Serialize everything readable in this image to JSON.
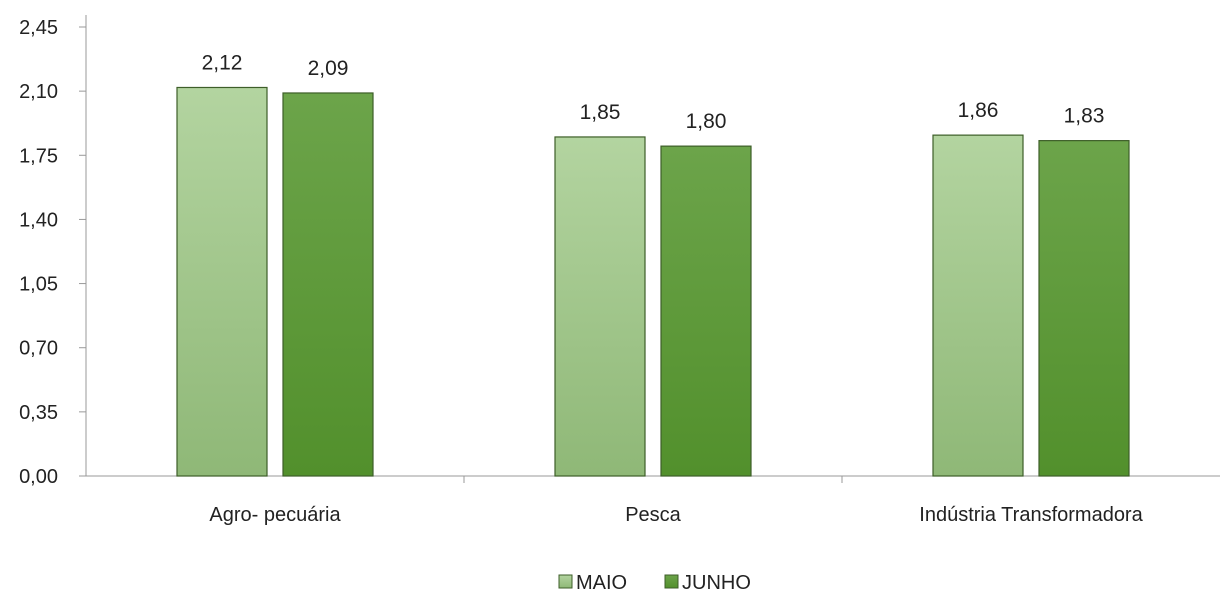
{
  "chart_data": {
    "type": "bar",
    "categories": [
      "Agro- pecuária",
      "Pesca",
      "Indústria Transformadora"
    ],
    "series": [
      {
        "name": "MAIO",
        "values": [
          2.12,
          1.85,
          1.86
        ],
        "value_labels": [
          "2,12",
          "1,85",
          "1,86"
        ],
        "color": "#a6c990"
      },
      {
        "name": "JUNHO",
        "values": [
          2.09,
          1.8,
          1.83
        ],
        "value_labels": [
          "2,09",
          "1,80",
          "1,83"
        ],
        "color": "#5e9a3a"
      }
    ],
    "ylim": [
      0,
      2.45
    ],
    "yticks": [
      0,
      0.35,
      0.7,
      1.05,
      1.4,
      1.75,
      2.1,
      2.45
    ],
    "ytick_labels": [
      "0,00",
      "0,35",
      "0,70",
      "1,05",
      "1,40",
      "1,75",
      "2,10",
      "2,45"
    ],
    "legend_position": "bottom",
    "grid": false,
    "title": "",
    "xlabel": "",
    "ylabel": ""
  }
}
